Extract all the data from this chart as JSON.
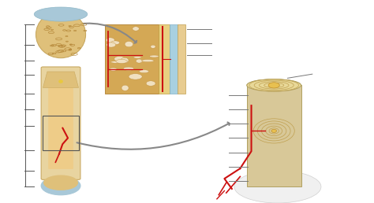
{
  "background_color": "#ffffff",
  "fig_width": 4.74,
  "fig_height": 2.58,
  "dpi": 100,
  "spongy_col": "#d4a855",
  "cortical_col": "#e8d4a0",
  "epiphysis_col": "#dfc07a",
  "articular_col": "#a8c8d8",
  "marrow_col": "#eecc88",
  "red_col": "#cc1111",
  "gray_col": "#888888",
  "bracket_col": "#555555",
  "ann_col": "#777777"
}
